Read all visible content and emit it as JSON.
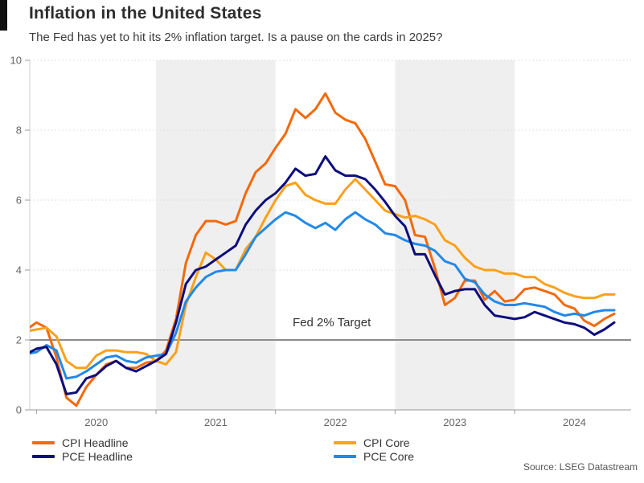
{
  "header": {
    "title": "Inflation in the United States",
    "subtitle": "The Fed has yet to hit its 2% inflation target. Is a pause on the cards in 2025?"
  },
  "annotation": {
    "target_label": "Fed 2% Target"
  },
  "source": "Source: LSEG Datastream",
  "chart_data": {
    "type": "line",
    "title": "Inflation in the United States",
    "subtitle": "The Fed has yet to hit its 2% inflation target. Is a pause on the cards in 2025?",
    "frequency": "monthly",
    "x_start": "2019-12",
    "x_end": "2024-11",
    "x_tick_labels": [
      "2020",
      "2021",
      "2022",
      "2023",
      "2024"
    ],
    "y_ticks": [
      0,
      2,
      4,
      6,
      8,
      10
    ],
    "ylim": [
      0,
      10
    ],
    "grid": "dotted-horizontal",
    "band_color": "#efefef",
    "shaded_year_bands": [
      "2021",
      "2023"
    ],
    "target_line": {
      "value": 2,
      "label": "Fed 2% Target",
      "color": "#8c8c8c"
    },
    "legend_position": "bottom",
    "series": [
      {
        "name": "CPI Headline",
        "color": "#f4690a",
        "values": [
          2.3,
          2.5,
          2.35,
          1.5,
          0.35,
          0.12,
          0.65,
          1.0,
          1.3,
          1.4,
          1.2,
          1.2,
          1.35,
          1.4,
          1.7,
          2.6,
          4.2,
          5.0,
          5.4,
          5.4,
          5.3,
          5.4,
          6.2,
          6.8,
          7.05,
          7.5,
          7.9,
          8.6,
          8.35,
          8.6,
          9.05,
          8.5,
          8.3,
          8.2,
          7.75,
          7.1,
          6.45,
          6.4,
          6.0,
          5.0,
          4.95,
          4.05,
          3.0,
          3.2,
          3.7,
          3.7,
          3.15,
          3.4,
          3.1,
          3.15,
          3.45,
          3.5,
          3.4,
          3.3,
          3.0,
          2.9,
          2.55,
          2.4,
          2.6,
          2.75
        ]
      },
      {
        "name": "PCE Headline",
        "color": "#0d0d7c",
        "values": [
          1.6,
          1.75,
          1.8,
          1.3,
          0.45,
          0.5,
          0.9,
          1.0,
          1.25,
          1.4,
          1.2,
          1.1,
          1.25,
          1.4,
          1.6,
          2.5,
          3.6,
          4.0,
          4.1,
          4.3,
          4.5,
          4.7,
          5.3,
          5.7,
          6.0,
          6.2,
          6.5,
          6.9,
          6.7,
          6.75,
          7.25,
          6.85,
          6.7,
          6.7,
          6.6,
          6.3,
          5.95,
          5.55,
          5.25,
          4.45,
          4.45,
          3.85,
          3.3,
          3.4,
          3.45,
          3.45,
          3.0,
          2.7,
          2.65,
          2.6,
          2.65,
          2.8,
          2.7,
          2.6,
          2.5,
          2.45,
          2.35,
          2.15,
          2.3,
          2.5
        ]
      },
      {
        "name": "CPI Core",
        "color": "#f9a11b",
        "values": [
          2.25,
          2.3,
          2.35,
          2.1,
          1.4,
          1.2,
          1.2,
          1.55,
          1.7,
          1.7,
          1.65,
          1.65,
          1.6,
          1.4,
          1.3,
          1.65,
          3.0,
          3.8,
          4.5,
          4.3,
          4.0,
          4.0,
          4.6,
          4.95,
          5.5,
          6.0,
          6.4,
          6.5,
          6.15,
          6.0,
          5.9,
          5.9,
          6.3,
          6.6,
          6.3,
          6.0,
          5.7,
          5.6,
          5.5,
          5.55,
          5.45,
          5.3,
          4.85,
          4.7,
          4.35,
          4.1,
          4.0,
          4.0,
          3.9,
          3.9,
          3.8,
          3.8,
          3.6,
          3.5,
          3.35,
          3.25,
          3.2,
          3.2,
          3.3,
          3.3
        ]
      },
      {
        "name": "PCE Core",
        "color": "#2189e8",
        "values": [
          1.6,
          1.65,
          1.85,
          1.7,
          0.9,
          0.95,
          1.1,
          1.3,
          1.5,
          1.55,
          1.4,
          1.35,
          1.5,
          1.55,
          1.6,
          2.2,
          3.1,
          3.5,
          3.8,
          3.95,
          4.0,
          4.0,
          4.45,
          4.95,
          5.2,
          5.45,
          5.65,
          5.55,
          5.35,
          5.2,
          5.35,
          5.15,
          5.45,
          5.65,
          5.45,
          5.3,
          5.05,
          5.0,
          4.85,
          4.75,
          4.7,
          4.55,
          4.25,
          4.15,
          3.75,
          3.65,
          3.3,
          3.1,
          3.0,
          3.0,
          3.05,
          3.0,
          2.95,
          2.8,
          2.7,
          2.75,
          2.7,
          2.8,
          2.85,
          2.85
        ]
      }
    ]
  },
  "legend": {
    "items": [
      "CPI Headline",
      "PCE Headline",
      "CPI Core",
      "PCE Core"
    ]
  }
}
